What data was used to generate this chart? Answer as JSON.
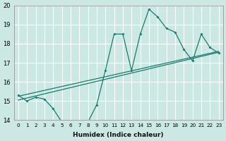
{
  "xlabel": "Humidex (Indice chaleur)",
  "background_color": "#cce8e4",
  "grid_color": "#ffffff",
  "line_color": "#1a7a6e",
  "xlim": [
    -0.5,
    23.5
  ],
  "ylim": [
    14,
    20
  ],
  "xticks": [
    0,
    1,
    2,
    3,
    4,
    5,
    6,
    7,
    8,
    9,
    10,
    11,
    12,
    13,
    14,
    15,
    16,
    17,
    18,
    19,
    20,
    21,
    22,
    23
  ],
  "yticks": [
    14,
    15,
    16,
    17,
    18,
    19,
    20
  ],
  "series1_x": [
    0,
    1,
    2,
    3,
    4,
    5,
    6,
    7,
    8,
    9,
    10,
    11,
    12,
    13,
    14,
    15,
    16,
    17,
    18,
    19,
    20,
    21,
    22,
    23
  ],
  "series1_y": [
    15.3,
    15.0,
    15.2,
    15.1,
    14.6,
    13.9,
    13.9,
    13.9,
    13.9,
    14.8,
    16.6,
    18.5,
    18.5,
    16.6,
    18.5,
    19.8,
    19.4,
    18.8,
    18.6,
    17.7,
    17.1,
    18.5,
    17.8,
    17.5
  ],
  "series2_x": [
    0,
    23
  ],
  "series2_y": [
    15.25,
    17.6
  ],
  "series3_x": [
    0,
    23
  ],
  "series3_y": [
    15.05,
    17.55
  ]
}
